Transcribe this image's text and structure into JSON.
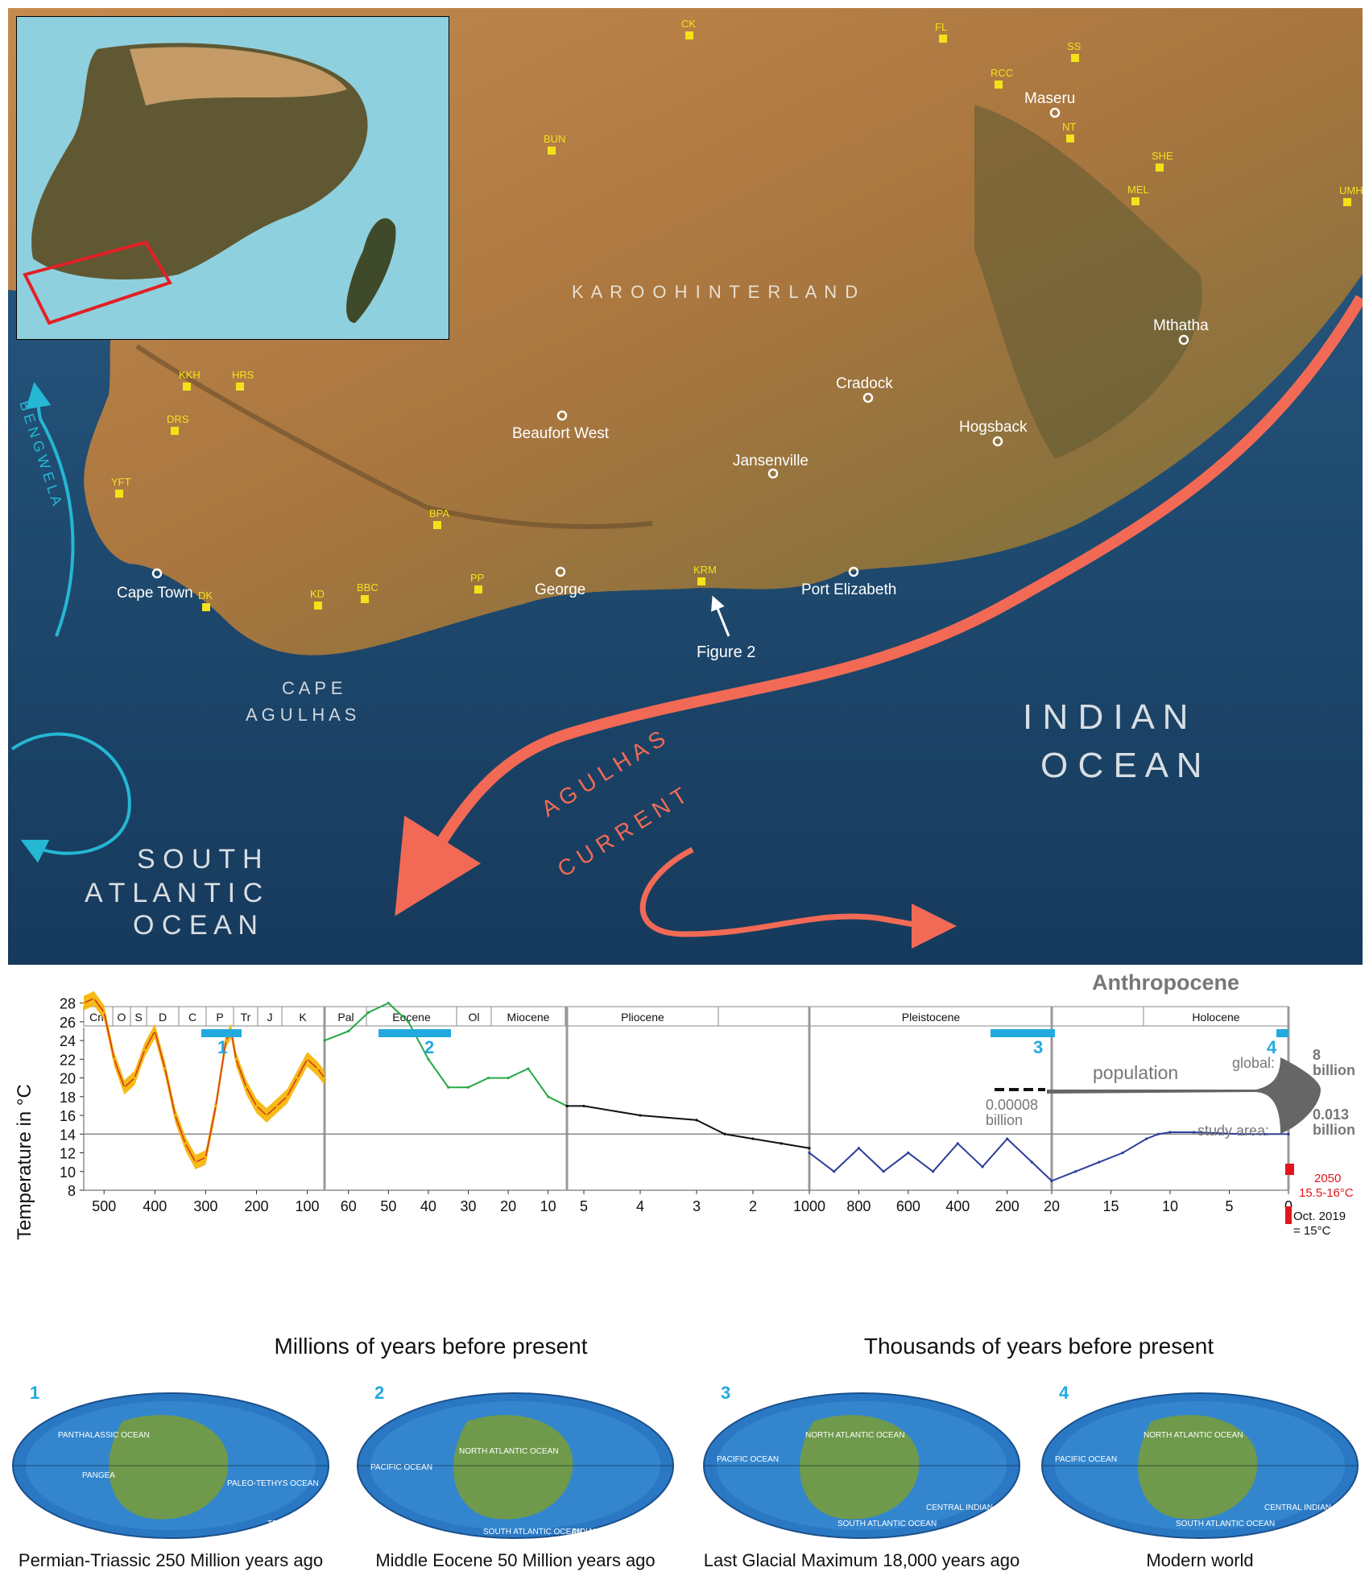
{
  "map": {
    "regions": {
      "hinterland": "K A R O O   H I N T E R L A N D",
      "cape_line1": "C A P E",
      "cape_line2": "A G U L H A S",
      "indian_line1": "I N D I A N",
      "indian_line2": "O C E A N",
      "atlantic_line1": "S O U T H",
      "atlantic_line2": "A T L A N T I C",
      "atlantic_line3": "O C E A N",
      "benguela": "B E N G W E L A",
      "agulhas_line1": "A G U L H A S",
      "agulhas_line2": "C U R R E N T"
    },
    "towns": [
      {
        "name": "Maseru"
      },
      {
        "name": "Mthatha"
      },
      {
        "name": "Cradock"
      },
      {
        "name": "Hogsback"
      },
      {
        "name": "Beaufort West"
      },
      {
        "name": "Jansenville"
      },
      {
        "name": "George"
      },
      {
        "name": "Port Elizabeth"
      },
      {
        "name": "Cape Town"
      }
    ],
    "sites": [
      {
        "code": "CK"
      },
      {
        "code": "FL"
      },
      {
        "code": "SS"
      },
      {
        "code": "RCC"
      },
      {
        "code": "NT"
      },
      {
        "code": "BUN"
      },
      {
        "code": "SHE"
      },
      {
        "code": "MEL"
      },
      {
        "code": "UMH"
      },
      {
        "code": "KKH"
      },
      {
        "code": "HRS"
      },
      {
        "code": "DRS"
      },
      {
        "code": "YFT"
      },
      {
        "code": "BPA"
      },
      {
        "code": "KRM"
      },
      {
        "code": "PP"
      },
      {
        "code": "BBC"
      },
      {
        "code": "KD"
      },
      {
        "code": "DK"
      }
    ],
    "figure_pointer": "Figure 2",
    "colors": {
      "site": "#f3e21a",
      "agulhas": "#f26a55",
      "benguela": "#25b7d3",
      "ocean": "#1d4a70",
      "land": "#b98048"
    }
  },
  "chart": {
    "anthropocene": "Anthropocene",
    "periods": [
      "Cm",
      "O",
      "S",
      "D",
      "C",
      "P",
      "Tr",
      "J",
      "K",
      "Pal",
      "Eocene",
      "Ol",
      "Miocene",
      "Pliocene",
      "Pleistocene",
      "Holocene"
    ],
    "ylabel": "Temperature in °C",
    "xlabel_left": "Millions of years before present",
    "xlabel_right": "Thousands of years before present",
    "yticks": [
      "28",
      "26",
      "24",
      "22",
      "20",
      "18",
      "16",
      "14",
      "12",
      "10",
      "8"
    ],
    "xticks": {
      "seg1": [
        "500",
        "400",
        "300",
        "200",
        "100"
      ],
      "seg2": [
        "60",
        "50",
        "40",
        "30",
        "20",
        "10"
      ],
      "seg3": [
        "5",
        "4",
        "3",
        "2"
      ],
      "seg4": [
        "1000",
        "800",
        "600",
        "400",
        "200",
        "20"
      ],
      "seg5": [
        "15",
        "10",
        "5",
        "0"
      ]
    },
    "markers": [
      "1",
      "2",
      "3",
      "4"
    ],
    "population": "population",
    "pop_global_label": "global:",
    "pop_global_value": "8",
    "pop_global_unit": "billion",
    "pop_study_label": "study area:",
    "pop_study_value": "0.013",
    "pop_study_unit": "billion",
    "pop_start_value": "0.00008",
    "pop_start_unit": "billion",
    "future_year": "2050",
    "future_range": "15.5-16°C",
    "present_line1": "Oct. 2019",
    "present_line2": "= 15°C",
    "colors": {
      "paleozoic": "#f5b400",
      "cenozoic": "#27a844",
      "pleistocene": "#111111",
      "marker": "#22a9df",
      "future": "#e0161b"
    }
  },
  "chart_data": {
    "type": "line",
    "title": "",
    "ylabel": "Temperature in °C",
    "ylim": [
      8,
      29
    ],
    "reference_line": 14,
    "segments": [
      {
        "axis": "Millions of years before present",
        "range": [
          540,
          66
        ],
        "x": [
          540,
          520,
          500,
          480,
          460,
          440,
          420,
          400,
          380,
          360,
          340,
          320,
          300,
          280,
          260,
          250,
          240,
          220,
          200,
          180,
          160,
          140,
          120,
          100,
          80,
          66
        ],
        "y": [
          28,
          28.5,
          27,
          22,
          19,
          20,
          23,
          25,
          21,
          16,
          13,
          11,
          11.5,
          17,
          24,
          25,
          22,
          19,
          17,
          16,
          17,
          18,
          20,
          22,
          21,
          20
        ]
      },
      {
        "axis": "Millions of years before present",
        "range": [
          66,
          5.3
        ],
        "x": [
          66,
          60,
          55,
          50,
          45,
          40,
          35,
          30,
          25,
          20,
          15,
          10,
          5.3
        ],
        "y": [
          24,
          25,
          27,
          28,
          26,
          22,
          19,
          19,
          20,
          20,
          21,
          18,
          17
        ]
      },
      {
        "axis": "Millions of years before present",
        "range": [
          5.3,
          1
        ],
        "x": [
          5.3,
          5,
          4,
          3,
          2.5,
          2,
          1.5,
          1
        ],
        "y": [
          17,
          17,
          16,
          15.5,
          14,
          13.5,
          13,
          12.5
        ]
      },
      {
        "axis": "Thousands of years before present",
        "range": [
          1000,
          20
        ],
        "x": [
          1000,
          900,
          800,
          700,
          600,
          500,
          400,
          300,
          200,
          100,
          20
        ],
        "y": [
          12,
          10,
          12.5,
          10,
          12,
          10,
          13,
          10.5,
          13.5,
          11,
          9
        ]
      },
      {
        "axis": "Thousands of years before present",
        "range": [
          20,
          0
        ],
        "x": [
          20,
          18,
          16,
          14,
          12,
          11,
          10,
          8,
          6,
          4,
          2,
          0
        ],
        "y": [
          9,
          10,
          11,
          12,
          13.5,
          14,
          14.2,
          14.2,
          14.1,
          14,
          14,
          14
        ]
      }
    ],
    "annotations": [
      {
        "label": "2050",
        "value": "15.5-16°C"
      },
      {
        "label": "Oct. 2019",
        "value": "15°C"
      }
    ]
  },
  "globes": [
    {
      "marker": "1",
      "caption": "Permian-Triassic 250 Million years ago",
      "labels": [
        "PANTHALASSIC OCEAN",
        "PANGEA",
        "PALEO-TETHYS OCEAN",
        "GONDWANA",
        "TETHYS OCEAN"
      ]
    },
    {
      "marker": "2",
      "caption": "Middle Eocene 50 Million years ago",
      "labels": [
        "PACIFIC OCEAN",
        "NORTH ATLANTIC OCEAN",
        "SOUTH ATLANTIC OCEAN",
        "INDIAN OCEAN"
      ]
    },
    {
      "marker": "3",
      "caption": "Last Glacial Maximum 18,000 years ago",
      "labels": [
        "NORTH ATLANTIC OCEAN",
        "PACIFIC OCEAN",
        "SOUTH ATLANTIC OCEAN",
        "CENTRAL INDIAN OCEAN"
      ]
    },
    {
      "marker": "4",
      "caption": "Modern world",
      "labels": [
        "NORTH ATLANTIC OCEAN",
        "PACIFIC OCEAN",
        "SOUTH ATLANTIC OCEAN",
        "CENTRAL INDIAN OCEAN"
      ]
    }
  ]
}
